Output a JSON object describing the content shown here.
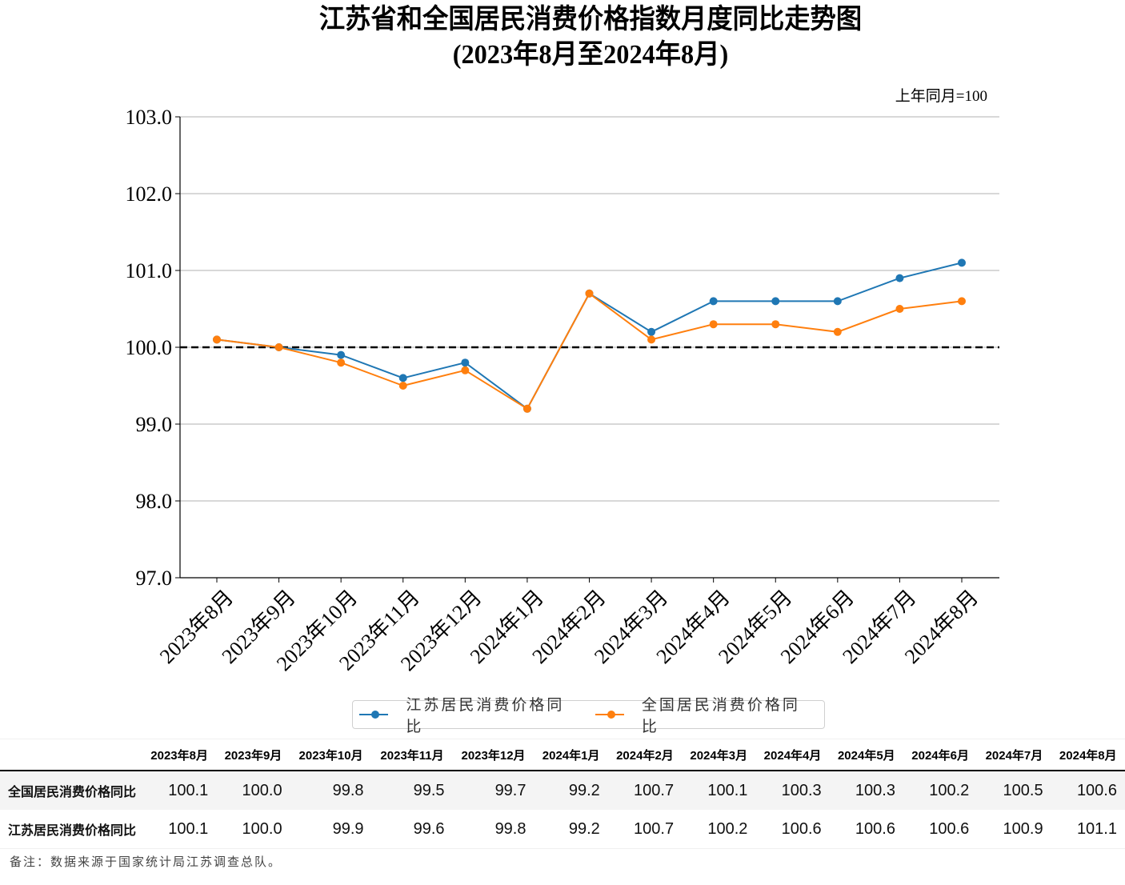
{
  "chart_data": {
    "type": "line",
    "title": "江苏省和全国居民消费价格指数月度同比走势图",
    "subtitle": "(2023年8月至2024年8月)",
    "annotation": "上年同月=100",
    "xlabel": "",
    "ylabel": "",
    "ylim": [
      97.0,
      103.0
    ],
    "yticks": [
      "97.0",
      "98.0",
      "99.0",
      "100.0",
      "101.0",
      "102.0",
      "103.0"
    ],
    "grid": "horizontal",
    "reference_line": {
      "y": 100.0,
      "style": "dashed",
      "color": "#000000"
    },
    "categories": [
      "2023年8月",
      "2023年9月",
      "2023年10月",
      "2023年11月",
      "2023年12月",
      "2024年1月",
      "2024年2月",
      "2024年3月",
      "2024年4月",
      "2024年5月",
      "2024年6月",
      "2024年7月",
      "2024年8月"
    ],
    "series": [
      {
        "name": "江苏居民消费价格同比",
        "color": "#1f77b4",
        "values": [
          100.1,
          100.0,
          99.9,
          99.6,
          99.8,
          99.2,
          100.7,
          100.2,
          100.6,
          100.6,
          100.6,
          100.9,
          101.1
        ]
      },
      {
        "name": "全国居民消费价格同比",
        "color": "#ff7f0e",
        "values": [
          100.1,
          100.0,
          99.8,
          99.5,
          99.7,
          99.2,
          100.7,
          100.1,
          100.3,
          100.3,
          100.2,
          100.5,
          100.6
        ]
      }
    ],
    "legend": "bottom-center"
  },
  "table": {
    "columns": [
      "2023年8月",
      "2023年9月",
      "2023年10月",
      "2023年11月",
      "2023年12月",
      "2024年1月",
      "2024年2月",
      "2024年3月",
      "2024年4月",
      "2024年5月",
      "2024年6月",
      "2024年7月",
      "2024年8月"
    ],
    "rows": [
      {
        "label": "全国居民消费价格同比",
        "values": [
          "100.1",
          "100.0",
          "99.8",
          "99.5",
          "99.7",
          "99.2",
          "100.7",
          "100.1",
          "100.3",
          "100.3",
          "100.2",
          "100.5",
          "100.6"
        ]
      },
      {
        "label": "江苏居民消费价格同比",
        "values": [
          "100.1",
          "100.0",
          "99.9",
          "99.6",
          "99.8",
          "99.2",
          "100.7",
          "100.2",
          "100.6",
          "100.6",
          "100.6",
          "100.9",
          "101.1"
        ]
      }
    ]
  },
  "note": "备注：数据来源于国家统计局江苏调查总队。"
}
